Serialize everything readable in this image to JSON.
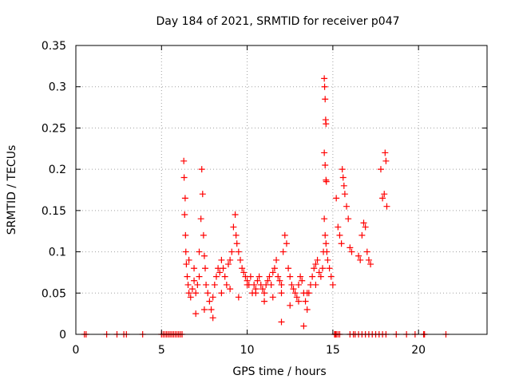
{
  "chart_data": {
    "type": "scatter",
    "title": "Day 184 of 2021, SRMTID for receiver p047",
    "xlabel": "GPS time / hours",
    "ylabel": "SRMTID / TECUs",
    "xlim": [
      0,
      24
    ],
    "ylim": [
      0,
      0.35
    ],
    "xticks": [
      0,
      5,
      10,
      15,
      20
    ],
    "xtick_labels": [
      "0",
      "5",
      "10",
      "15",
      "20"
    ],
    "yticks": [
      0,
      0.05,
      0.1,
      0.15,
      0.2,
      0.25,
      0.3,
      0.35
    ],
    "ytick_labels": [
      "0",
      "0.05",
      "0.1",
      "0.15",
      "0.2",
      "0.25",
      "0.3",
      "0.35"
    ],
    "grid": true,
    "marker": "+",
    "color": "#ff0000",
    "series": [
      {
        "name": "SRMTID",
        "x": [
          0.5,
          0.6,
          1.8,
          2.4,
          2.8,
          2.95,
          3.9,
          5.0,
          5.1,
          5.2,
          5.3,
          5.4,
          5.5,
          5.6,
          5.7,
          5.8,
          5.9,
          6.0,
          6.1,
          6.2,
          15.1,
          15.15,
          15.2,
          15.3,
          15.4,
          16.0,
          16.2,
          16.3,
          16.5,
          16.7,
          16.9,
          17.1,
          17.3,
          17.5,
          17.7,
          17.9,
          18.1,
          18.7,
          19.3,
          19.8,
          20.3,
          20.35,
          21.6,
          6.3,
          6.32,
          6.35,
          6.38,
          6.4,
          6.42,
          6.45,
          6.5,
          6.55,
          6.6,
          6.7,
          6.8,
          6.9,
          7.0,
          7.1,
          7.2,
          7.3,
          7.35,
          7.4,
          7.45,
          7.5,
          7.55,
          7.6,
          7.7,
          7.8,
          7.9,
          8.0,
          8.1,
          8.2,
          8.3,
          8.4,
          8.5,
          8.6,
          8.7,
          8.8,
          8.9,
          9.0,
          9.1,
          9.2,
          9.3,
          9.35,
          9.4,
          9.5,
          9.6,
          9.7,
          9.8,
          9.9,
          10.0,
          10.1,
          10.2,
          10.3,
          10.4,
          10.5,
          10.6,
          10.7,
          10.8,
          10.9,
          11.0,
          11.1,
          11.2,
          11.3,
          11.4,
          11.5,
          11.6,
          11.7,
          11.8,
          11.9,
          12.0,
          12.1,
          12.2,
          12.3,
          12.4,
          12.5,
          12.6,
          12.7,
          12.8,
          12.9,
          13.0,
          13.1,
          13.2,
          13.3,
          13.4,
          13.5,
          13.6,
          13.7,
          13.8,
          13.9,
          14.0,
          14.1,
          14.2,
          14.3,
          14.4,
          14.45,
          14.5,
          14.55,
          14.6,
          14.65,
          14.7,
          14.8,
          14.9,
          15.0,
          14.5,
          14.52,
          14.55,
          14.58,
          14.6,
          14.5,
          14.55,
          14.6,
          14.62,
          15.2,
          15.3,
          15.4,
          15.5,
          15.55,
          15.6,
          15.65,
          15.7,
          15.8,
          15.9,
          16.0,
          16.1,
          16.5,
          16.6,
          16.7,
          16.8,
          16.9,
          17.0,
          17.1,
          17.2,
          17.8,
          17.9,
          18.0,
          18.05,
          18.1,
          18.15,
          8.5,
          9.0,
          9.5,
          10.0,
          10.5,
          11.0,
          11.5,
          12.0,
          12.5,
          13.0,
          13.5,
          14.0,
          7.0,
          7.5,
          8.0,
          6.6,
          6.9,
          7.2,
          12.0,
          13.3
        ],
        "y": [
          0,
          0,
          0,
          0,
          0,
          0,
          0,
          0,
          0,
          0,
          0,
          0,
          0,
          0,
          0,
          0,
          0,
          0,
          0,
          0,
          0,
          0,
          0,
          0,
          0,
          0,
          0,
          0,
          0,
          0,
          0,
          0,
          0,
          0,
          0,
          0,
          0,
          0,
          0,
          0,
          0,
          0,
          0,
          0.21,
          0.19,
          0.145,
          0.165,
          0.12,
          0.1,
          0.085,
          0.07,
          0.06,
          0.05,
          0.045,
          0.055,
          0.065,
          0.05,
          0.06,
          0.07,
          0.14,
          0.2,
          0.17,
          0.12,
          0.095,
          0.08,
          0.06,
          0.05,
          0.04,
          0.03,
          0.045,
          0.06,
          0.07,
          0.08,
          0.075,
          0.09,
          0.08,
          0.07,
          0.06,
          0.085,
          0.09,
          0.1,
          0.13,
          0.145,
          0.12,
          0.11,
          0.1,
          0.09,
          0.08,
          0.075,
          0.07,
          0.065,
          0.06,
          0.07,
          0.05,
          0.06,
          0.055,
          0.065,
          0.07,
          0.06,
          0.055,
          0.05,
          0.06,
          0.065,
          0.07,
          0.06,
          0.075,
          0.08,
          0.09,
          0.07,
          0.065,
          0.06,
          0.1,
          0.12,
          0.11,
          0.08,
          0.07,
          0.06,
          0.055,
          0.05,
          0.045,
          0.06,
          0.07,
          0.065,
          0.05,
          0.04,
          0.03,
          0.05,
          0.06,
          0.07,
          0.08,
          0.085,
          0.09,
          0.075,
          0.07,
          0.08,
          0.1,
          0.14,
          0.12,
          0.11,
          0.1,
          0.09,
          0.08,
          0.07,
          0.06,
          0.31,
          0.3,
          0.285,
          0.26,
          0.255,
          0.22,
          0.205,
          0.187,
          0.185,
          0.165,
          0.13,
          0.12,
          0.11,
          0.2,
          0.19,
          0.18,
          0.17,
          0.155,
          0.14,
          0.105,
          0.1,
          0.095,
          0.09,
          0.12,
          0.135,
          0.13,
          0.1,
          0.09,
          0.085,
          0.2,
          0.165,
          0.17,
          0.22,
          0.21,
          0.155,
          0.05,
          0.055,
          0.045,
          0.06,
          0.05,
          0.04,
          0.045,
          0.05,
          0.035,
          0.04,
          0.05,
          0.06,
          0.025,
          0.03,
          0.02,
          0.09,
          0.08,
          0.1,
          0.015,
          0.01
        ]
      }
    ]
  }
}
